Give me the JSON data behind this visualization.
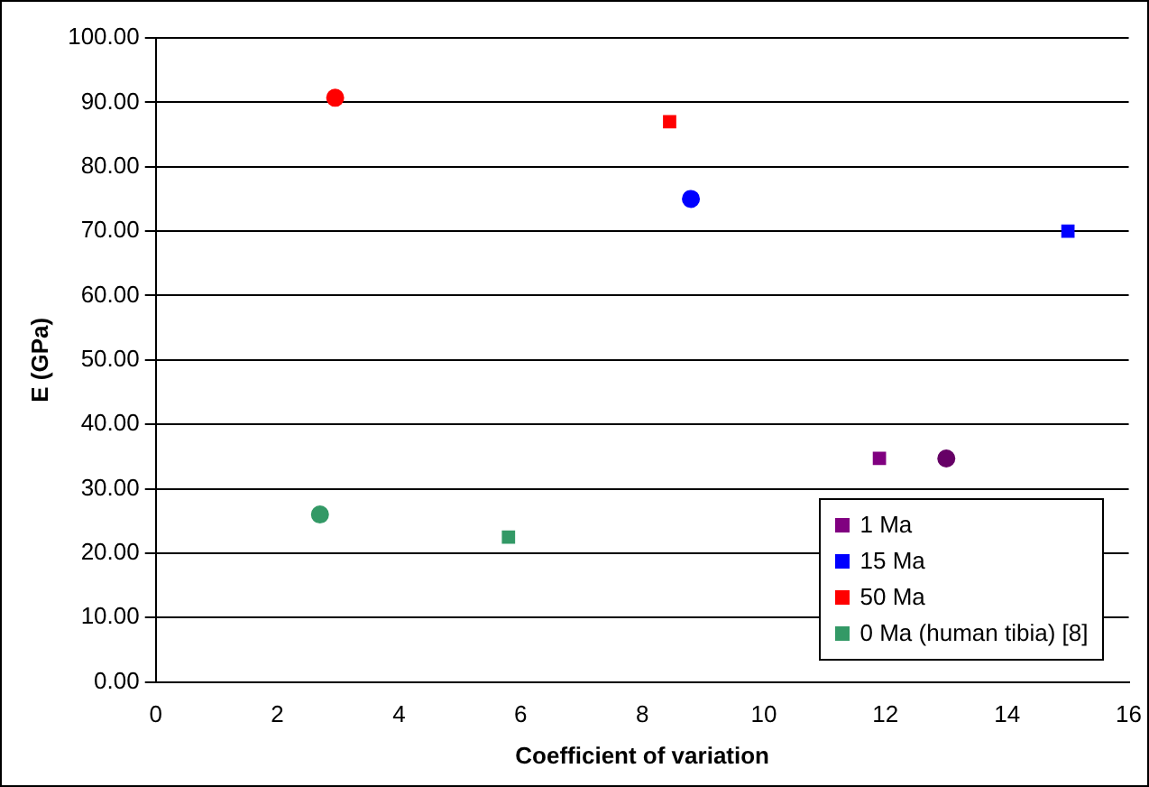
{
  "chart_data": {
    "type": "scatter",
    "xlabel": "Coefficient of variation",
    "ylabel": "E (GPa)",
    "xlim": [
      0,
      16
    ],
    "xticks": [
      0,
      2,
      4,
      6,
      8,
      10,
      12,
      14,
      16
    ],
    "ylim": [
      0,
      100
    ],
    "yticks": [
      {
        "value": 0,
        "label": "0.00"
      },
      {
        "value": 10,
        "label": "10.00"
      },
      {
        "value": 20,
        "label": "20.00"
      },
      {
        "value": 30,
        "label": "30.00"
      },
      {
        "value": 40,
        "label": "40.00"
      },
      {
        "value": 50,
        "label": "50.00"
      },
      {
        "value": 60,
        "label": "60.00"
      },
      {
        "value": 70,
        "label": "70.00"
      },
      {
        "value": 80,
        "label": "80.00"
      },
      {
        "value": 90,
        "label": "90.00"
      },
      {
        "value": 100,
        "label": "100.00"
      }
    ],
    "grid": "y",
    "legend": "bottom right",
    "series": [
      {
        "name": "1 Ma",
        "color": "#800080",
        "marker": "square",
        "x": [
          11.9
        ],
        "values": [
          34.7
        ]
      },
      {
        "name": "15 Ma",
        "color": "#0000ff",
        "marker": "square",
        "x": [
          15
        ],
        "values": [
          70
        ]
      },
      {
        "name": "50 Ma",
        "color": "#ff0000",
        "marker": "square",
        "x": [
          8.45
        ],
        "values": [
          87
        ]
      },
      {
        "name": "0 Ma (human tibia) [8]",
        "color": "#339966",
        "marker": "square",
        "x": [
          5.8
        ],
        "values": [
          22.5
        ]
      },
      {
        "color": "#660066",
        "marker": "circle",
        "x": [
          13
        ],
        "values": [
          34.7
        ]
      },
      {
        "color": "#0000ff",
        "marker": "circle",
        "x": [
          8.8
        ],
        "values": [
          75
        ]
      },
      {
        "color": "#ff0000",
        "marker": "circle",
        "x": [
          2.95
        ],
        "values": [
          90.7
        ]
      },
      {
        "color": "#339966",
        "marker": "circle",
        "x": [
          2.7
        ],
        "values": [
          26
        ]
      }
    ]
  }
}
